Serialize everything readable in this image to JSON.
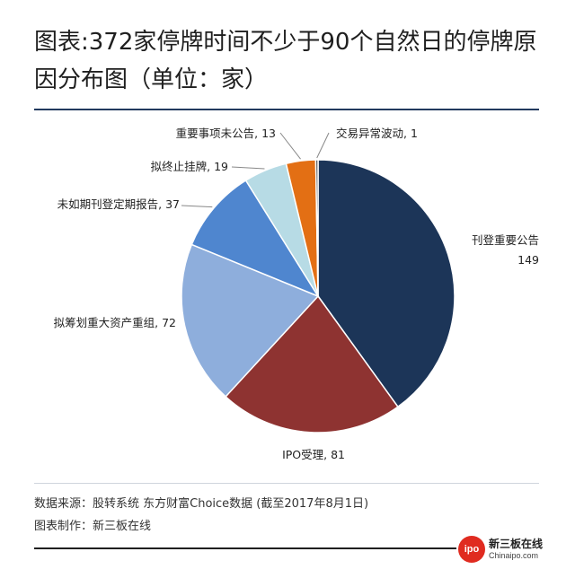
{
  "title": "图表:372家停牌时间不少于90个自然日的停牌原因分布图（单位：家）",
  "footer": {
    "source": "数据来源：股转系统 东方财富Choice数据 (截至2017年8月1日)",
    "maker": "图表制作：新三板在线"
  },
  "logo": {
    "mark": "ipo",
    "name_cn": "新三板在线",
    "name_en": "Chinaipo.com"
  },
  "colors": {
    "rule": "#223a5e"
  },
  "chart_data": {
    "type": "pie",
    "start_angle_deg": 0,
    "direction": "clockwise",
    "slices": [
      {
        "label": "刊登重要公告",
        "value": 149,
        "color": "#1c3558"
      },
      {
        "label": "IPO受理",
        "value": 81,
        "color": "#8e3331"
      },
      {
        "label": "拟筹划重大资产重组",
        "value": 72,
        "color": "#8eaedc"
      },
      {
        "label": "未如期刊登定期报告",
        "value": 37,
        "color": "#4f86cf"
      },
      {
        "label": "拟终止挂牌",
        "value": 19,
        "color": "#b7dbe5"
      },
      {
        "label": "重要事项未公告",
        "value": 13,
        "color": "#e36f14"
      },
      {
        "label": "交易异常波动",
        "value": 1,
        "color": "#3a3a3a"
      }
    ],
    "total": 372
  }
}
